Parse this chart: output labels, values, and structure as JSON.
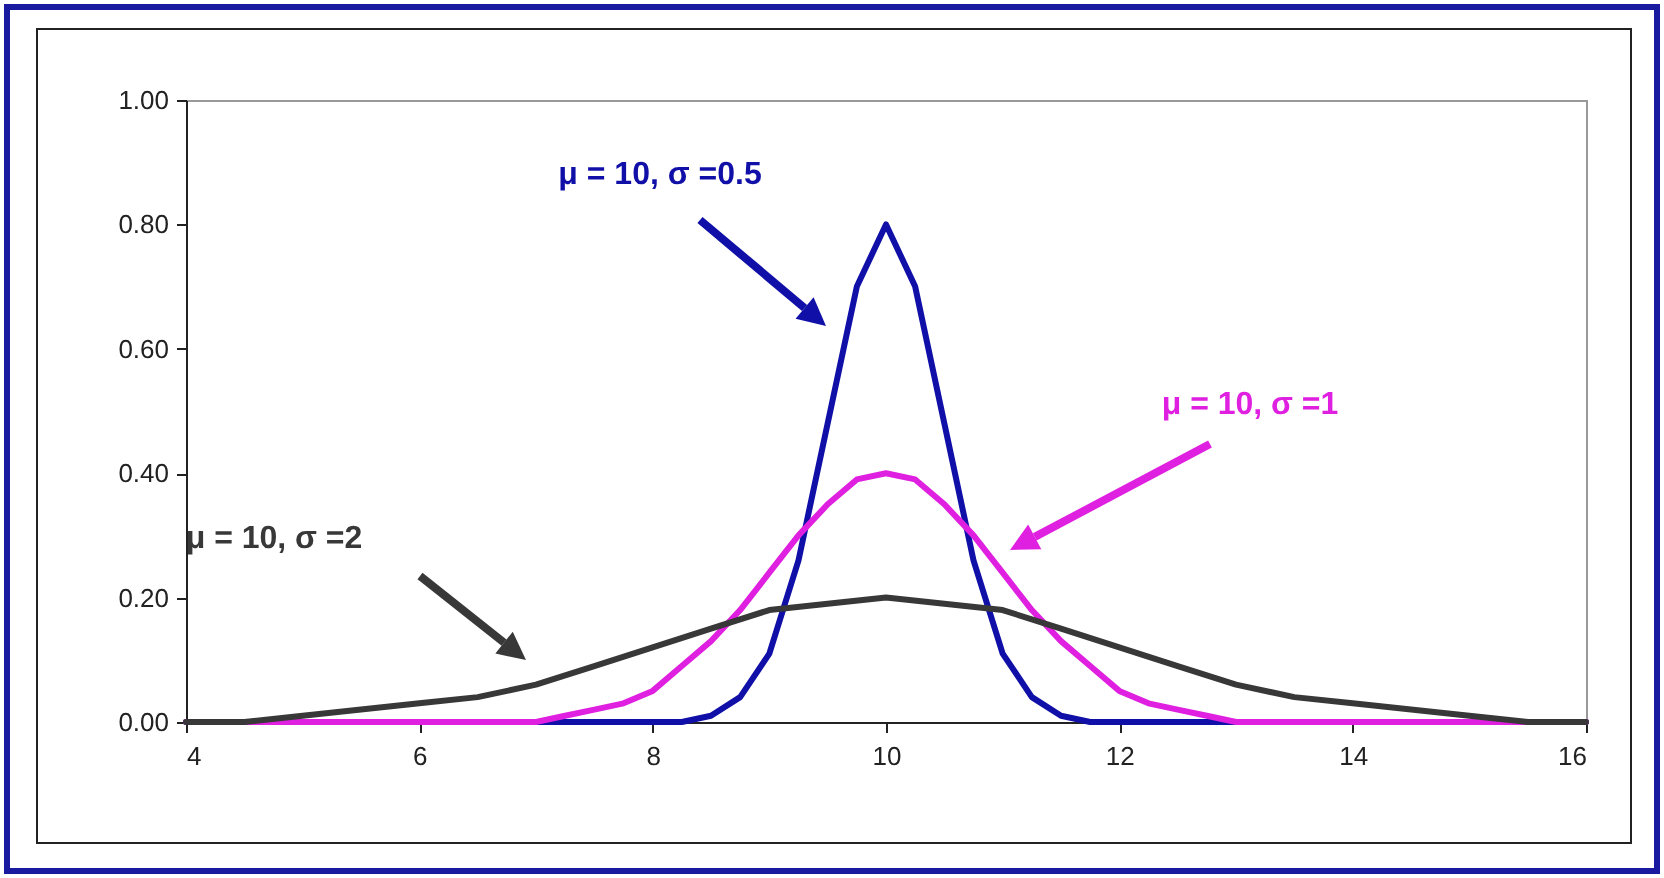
{
  "chart_data": {
    "type": "line",
    "xlim": [
      4,
      16
    ],
    "ylim": [
      0,
      1
    ],
    "xticks": [
      4,
      6,
      8,
      10,
      12,
      14,
      16
    ],
    "yticks": [
      {
        "value": 0,
        "label": "0.00"
      },
      {
        "value": 0.2,
        "label": "0.20"
      },
      {
        "value": 0.4,
        "label": "0.40"
      },
      {
        "value": 0.6,
        "label": "0.60"
      },
      {
        "value": 0.8,
        "label": "0.80"
      },
      {
        "value": 1,
        "label": "1.00"
      }
    ],
    "series": [
      {
        "color": "#1010a8",
        "x": [
          4,
          8.25,
          8.5,
          8.75,
          9,
          9.25,
          9.5,
          9.75,
          10,
          10.25,
          10.5,
          10.75,
          11,
          11.25,
          11.5,
          11.75,
          16
        ],
        "values": [
          0,
          0,
          0.01,
          0.04,
          0.11,
          0.26,
          0.48,
          0.7,
          0.8,
          0.7,
          0.48,
          0.26,
          0.11,
          0.04,
          0.01,
          0,
          0
        ]
      },
      {
        "color": "#e020e0",
        "x": [
          4,
          6.5,
          6.75,
          7,
          7.25,
          7.5,
          7.75,
          8,
          8.25,
          8.5,
          8.75,
          9,
          9.25,
          9.5,
          9.75,
          10,
          10.25,
          10.5,
          10.75,
          11,
          11.25,
          11.5,
          11.75,
          12,
          12.25,
          12.5,
          12.75,
          13,
          13.25,
          13.5,
          16
        ],
        "values": [
          0,
          0,
          0,
          0,
          0.01,
          0.02,
          0.03,
          0.05,
          0.09,
          0.13,
          0.18,
          0.24,
          0.3,
          0.35,
          0.39,
          0.4,
          0.39,
          0.35,
          0.3,
          0.24,
          0.18,
          0.13,
          0.09,
          0.05,
          0.03,
          0.02,
          0.01,
          0,
          0,
          0,
          0
        ]
      },
      {
        "color": "#383838",
        "x": [
          4,
          4.5,
          5,
          5.5,
          6,
          6.5,
          7,
          7.5,
          8,
          8.5,
          9,
          9.5,
          10,
          10.5,
          11,
          11.5,
          12,
          12.5,
          13,
          13.5,
          14,
          14.5,
          15,
          15.5,
          16
        ],
        "values": [
          0,
          0,
          0.01,
          0.02,
          0.03,
          0.04,
          0.06,
          0.09,
          0.12,
          0.15,
          0.18,
          0.19,
          0.2,
          0.19,
          0.18,
          0.15,
          0.12,
          0.09,
          0.06,
          0.04,
          0.03,
          0.02,
          0.01,
          0,
          0
        ]
      }
    ],
    "annotations": [
      "μ = 10, σ =0.5",
      "μ = 10, σ =1",
      "μ = 10, σ =2"
    ]
  }
}
